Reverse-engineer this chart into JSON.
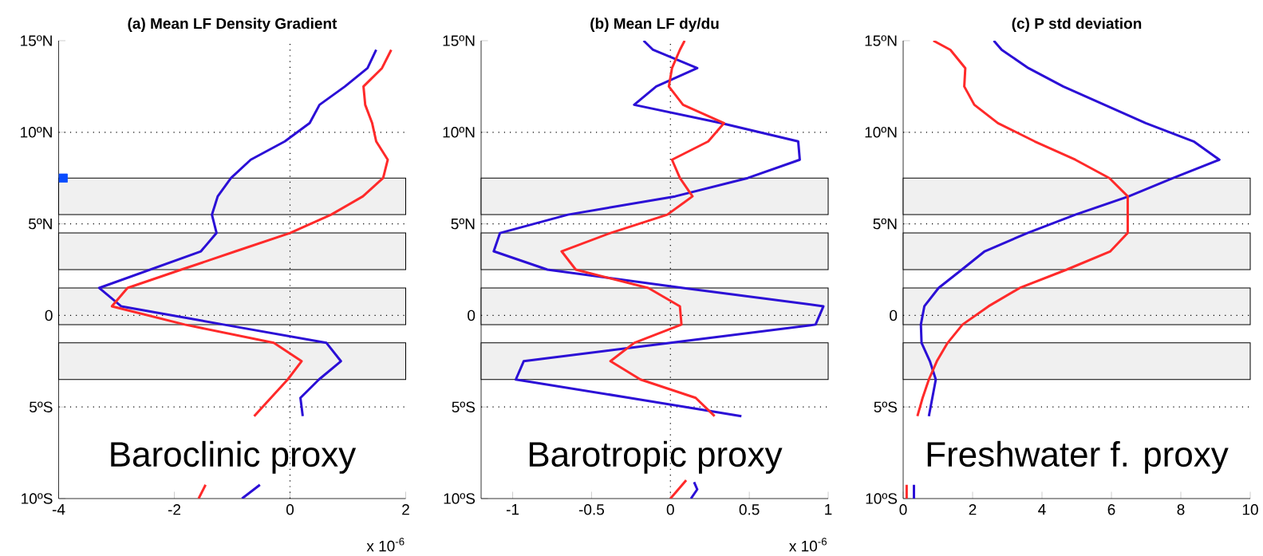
{
  "chart_data": [
    {
      "type": "line",
      "title": "(a) Mean LF Density Gradient",
      "xlim": [
        -4,
        2
      ],
      "xticks": [
        -4,
        -2,
        0,
        2
      ],
      "ylim": [
        -10,
        15
      ],
      "yticks": [
        {
          "value": -10,
          "label": "10ºS"
        },
        {
          "value": -5,
          "label": "5ºS"
        },
        0,
        {
          "value": 5,
          "label": "5ºN"
        },
        {
          "value": 10,
          "label": "10ºN"
        },
        {
          "value": 15,
          "label": "15ºN"
        }
      ],
      "series": [
        {
          "color": "#2b0fd6",
          "x": [
            1.49,
            1.34,
            0.95,
            0.51,
            0.34,
            -0.09,
            -0.68,
            -1.02,
            -1.25,
            -1.35,
            -1.27,
            -1.54,
            -2.42,
            -3.3,
            -2.92,
            -1.15,
            0.63,
            0.88,
            0.5,
            0.18,
            0.22,
            null,
            -0.52,
            -0.83
          ],
          "values": [
            14.5,
            13.5,
            12.5,
            11.5,
            10.5,
            9.5,
            8.5,
            7.5,
            6.5,
            5.5,
            4.5,
            3.5,
            2.5,
            1.5,
            0.5,
            -0.5,
            -1.5,
            -2.5,
            -3.5,
            -4.5,
            -5.5,
            null,
            -9.25,
            -10
          ]
        },
        {
          "color": "#ff2a2a",
          "x": [
            1.75,
            1.59,
            1.27,
            1.3,
            1.42,
            1.49,
            1.69,
            1.61,
            1.26,
            0.71,
            0.0,
            -0.94,
            -1.88,
            -2.81,
            -3.08,
            -1.82,
            -0.28,
            0.2,
            -0.04,
            -0.33,
            -0.62,
            null,
            -1.46,
            -1.58
          ],
          "values": [
            14.5,
            13.5,
            12.5,
            11.5,
            10.5,
            9.5,
            8.5,
            7.5,
            6.5,
            5.5,
            4.5,
            3.5,
            2.5,
            1.5,
            0.5,
            -0.5,
            -1.5,
            -2.5,
            -3.5,
            -4.5,
            -5.5,
            null,
            -9.25,
            -10
          ]
        },
        {
          "type": "scatter",
          "marker": "square",
          "color": "#0a4cff",
          "x": [
            -3.92
          ],
          "values": [
            7.5
          ]
        }
      ],
      "bands": [
        {
          "axis": "y",
          "from": 5.5,
          "to": 7.5,
          "color": "#f0f0f0"
        },
        {
          "axis": "y",
          "from": 2.5,
          "to": 4.5,
          "color": "#f0f0f0"
        },
        {
          "axis": "y",
          "from": -0.5,
          "to": 1.5,
          "color": "#f0f0f0"
        },
        {
          "axis": "y",
          "from": -3.5,
          "to": -1.5,
          "color": "#f0f0f0"
        }
      ],
      "ref_lines": [
        {
          "axis": "y",
          "value": 10,
          "line_style": "dotted"
        },
        {
          "axis": "y",
          "value": 5,
          "line_style": "dotted"
        },
        {
          "axis": "y",
          "value": 0,
          "line_style": "dotted"
        },
        {
          "axis": "y",
          "value": -5,
          "line_style": "dotted"
        },
        {
          "axis": "x",
          "value": 0,
          "line_style": "dotted"
        }
      ],
      "annotations": [
        "Baroclinic proxy",
        "x 10$^{-6}$"
      ]
    },
    {
      "type": "line",
      "title": "(b) Mean LF dy/du",
      "xlim": [
        -1.2,
        1
      ],
      "xticks": [
        -1,
        -0.5,
        0,
        0.5,
        1
      ],
      "ylim": [
        -10,
        15
      ],
      "yticks": [
        {
          "value": -10,
          "label": "10ºS"
        },
        {
          "value": -5,
          "label": "5ºS"
        },
        0,
        {
          "value": 5,
          "label": "5ºN"
        },
        {
          "value": 10,
          "label": "10ºN"
        },
        {
          "value": 15,
          "label": "15ºN"
        }
      ],
      "series": [
        {
          "color": "#2b0fd6",
          "x": [
            -0.17,
            -0.11,
            0.17,
            -0.09,
            -0.23,
            0.32,
            0.81,
            0.82,
            0.49,
            0.03,
            -0.65,
            -1.08,
            -1.12,
            -0.78,
            0.08,
            0.97,
            0.92,
            0.0,
            -0.93,
            -0.98,
            -0.26,
            0.45,
            null,
            0.15,
            0.17,
            0.13
          ],
          "values": [
            15,
            14.5,
            13.5,
            12.5,
            11.5,
            10.5,
            9.5,
            8.5,
            7.5,
            6.5,
            5.5,
            4.5,
            3.5,
            2.5,
            1.5,
            0.5,
            -0.5,
            -1.5,
            -2.5,
            -3.5,
            -4.5,
            -5.5,
            null,
            -9.1,
            -9.5,
            -10
          ]
        },
        {
          "color": "#ff2a2a",
          "x": [
            0.09,
            0.06,
            0.01,
            -0.01,
            0.08,
            0.34,
            0.24,
            0.01,
            0.06,
            0.14,
            -0.02,
            -0.38,
            -0.69,
            -0.6,
            -0.14,
            0.06,
            0.07,
            -0.23,
            -0.38,
            -0.19,
            0.16,
            0.28,
            null,
            0.1,
            0.0
          ],
          "values": [
            15,
            14.5,
            13.5,
            12.5,
            11.5,
            10.5,
            9.5,
            8.5,
            7.5,
            6.5,
            5.5,
            4.5,
            3.5,
            2.5,
            1.5,
            0.5,
            -0.5,
            -1.5,
            -2.5,
            -3.5,
            -4.5,
            -5.5,
            null,
            -9.0,
            -10
          ]
        }
      ],
      "bands": [
        {
          "axis": "y",
          "from": 5.5,
          "to": 7.5,
          "color": "#f0f0f0"
        },
        {
          "axis": "y",
          "from": 2.5,
          "to": 4.5,
          "color": "#f0f0f0"
        },
        {
          "axis": "y",
          "from": -0.5,
          "to": 1.5,
          "color": "#f0f0f0"
        },
        {
          "axis": "y",
          "from": -3.5,
          "to": -1.5,
          "color": "#f0f0f0"
        }
      ],
      "ref_lines": [
        {
          "axis": "y",
          "value": 10,
          "line_style": "dotted"
        },
        {
          "axis": "y",
          "value": 5,
          "line_style": "dotted"
        },
        {
          "axis": "y",
          "value": 0,
          "line_style": "dotted"
        },
        {
          "axis": "y",
          "value": -5,
          "line_style": "dotted"
        },
        {
          "axis": "x",
          "value": 0,
          "line_style": "dotted"
        }
      ],
      "annotations": [
        "Barotropic proxy",
        "x 10$^{-6}$"
      ]
    },
    {
      "type": "line",
      "title": "(c) P std deviation",
      "xlim": [
        0,
        10
      ],
      "xticks": [
        0,
        2,
        4,
        6,
        8,
        10
      ],
      "ylim": [
        -10,
        15
      ],
      "yticks": [
        {
          "value": -10,
          "label": "10ºS"
        },
        {
          "value": -5,
          "label": "5ºS"
        },
        0,
        {
          "value": 5,
          "label": "5ºN"
        },
        {
          "value": 10,
          "label": "10ºN"
        },
        {
          "value": 15,
          "label": "15ºN"
        }
      ],
      "series": [
        {
          "color": "#2b0fd6",
          "x": [
            2.61,
            2.84,
            3.61,
            4.61,
            5.8,
            6.99,
            8.37,
            9.11,
            7.78,
            6.5,
            4.96,
            3.58,
            2.35,
            1.69,
            1.02,
            0.61,
            0.51,
            0.53,
            0.77,
            0.94,
            0.84,
            0.74,
            null,
            0.31,
            0.31
          ],
          "values": [
            15,
            14.5,
            13.5,
            12.5,
            11.5,
            10.5,
            9.5,
            8.5,
            7.5,
            6.5,
            5.5,
            4.5,
            3.5,
            2.5,
            1.5,
            0.5,
            -0.5,
            -1.5,
            -2.5,
            -3.5,
            -4.5,
            -5.5,
            null,
            -9.25,
            -10
          ]
        },
        {
          "color": "#ff2a2a",
          "x": [
            0.87,
            1.36,
            1.79,
            1.76,
            2.05,
            2.73,
            3.79,
            4.96,
            5.94,
            6.47,
            6.47,
            5.97,
            4.71,
            3.36,
            2.46,
            1.71,
            1.28,
            0.97,
            0.74,
            0.56,
            0.41,
            null,
            0.1,
            0.1
          ],
          "values": [
            15,
            14.5,
            13.5,
            12.5,
            11.5,
            10.5,
            9.5,
            8.5,
            7.5,
            6.5,
            4.5,
            3.5,
            2.5,
            1.5,
            0.5,
            -0.5,
            -1.5,
            -2.5,
            -3.5,
            -4.5,
            -5.5,
            null,
            -9.25,
            -10
          ]
        }
      ],
      "bands": [
        {
          "axis": "y",
          "from": 5.5,
          "to": 7.5,
          "color": "#f0f0f0"
        },
        {
          "axis": "y",
          "from": 2.5,
          "to": 4.5,
          "color": "#f0f0f0"
        },
        {
          "axis": "y",
          "from": -0.5,
          "to": 1.5,
          "color": "#f0f0f0"
        },
        {
          "axis": "y",
          "from": -3.5,
          "to": -1.5,
          "color": "#f0f0f0"
        }
      ],
      "ref_lines": [
        {
          "axis": "y",
          "value": 10,
          "line_style": "dotted"
        },
        {
          "axis": "y",
          "value": 5,
          "line_style": "dotted"
        },
        {
          "axis": "y",
          "value": 0,
          "line_style": "dotted"
        },
        {
          "axis": "y",
          "value": -5,
          "line_style": "dotted"
        }
      ],
      "annotations": [
        "Freshwater f. proxy"
      ]
    }
  ]
}
